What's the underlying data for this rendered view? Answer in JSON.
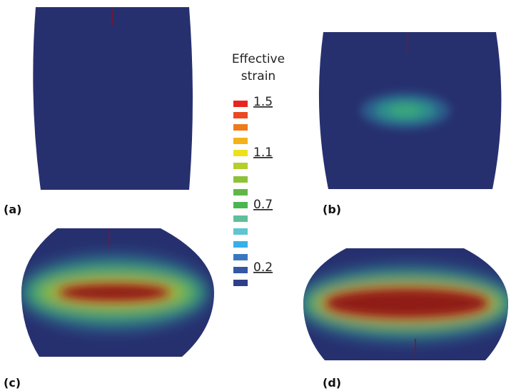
{
  "legend": {
    "title_line1": "Effective",
    "title_line2": "strain",
    "labels": [
      "1.5",
      "1.1",
      "0.7",
      "0.2"
    ]
  },
  "panels": [
    "(a)",
    "(b)",
    "(c)",
    "(d)"
  ]
}
